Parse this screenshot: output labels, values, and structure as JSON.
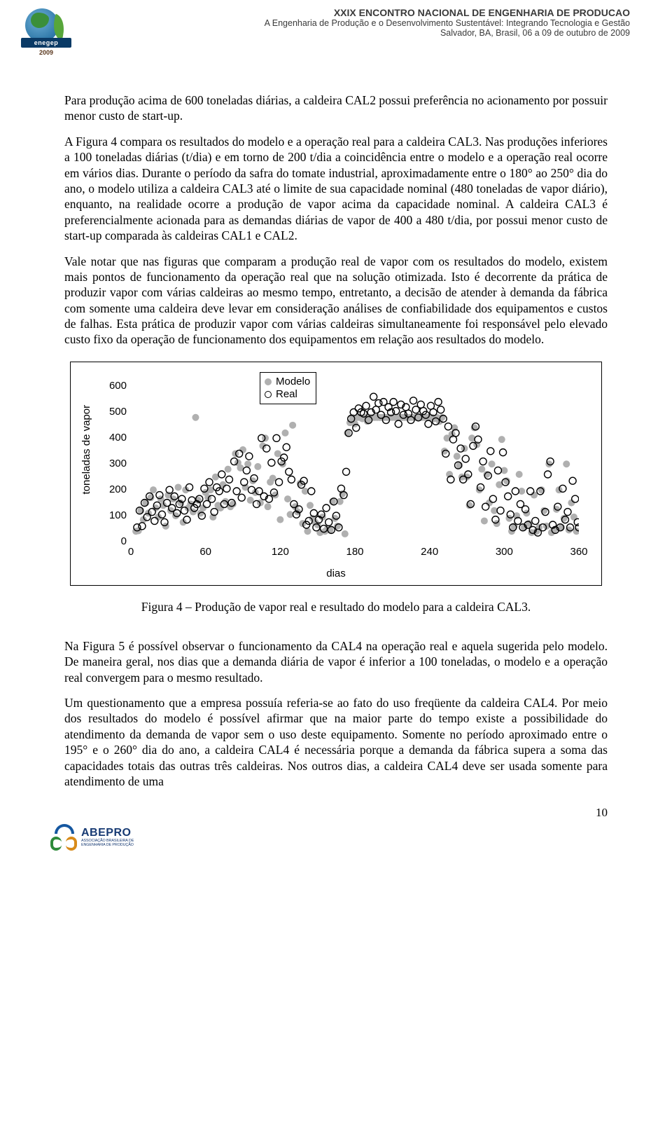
{
  "header": {
    "line1": "XXIX ENCONTRO NACIONAL DE ENGENHARIA DE PRODUCAO",
    "line2": "A Engenharia de Produção e o Desenvolvimento Sustentável:  Integrando Tecnologia e Gestão",
    "line3": "Salvador, BA, Brasil,  06 a 09 de outubro de 2009",
    "logo_text": "enegep",
    "logo_year": "2009"
  },
  "paragraphs": {
    "p1": "Para produção acima de 600 toneladas diárias, a caldeira CAL2 possui preferência no acionamento por possuir menor custo de start-up.",
    "p2": "A Figura 4 compara os resultados do modelo e a operação real para a caldeira CAL3. Nas produções inferiores a 100 toneladas diárias (t/dia) e em torno de 200 t/dia a coincidência entre o modelo e a operação real ocorre em vários dias. Durante o período da safra do tomate industrial, aproximadamente entre o 180° ao 250° dia do ano, o modelo utiliza a caldeira CAL3 até o limite de sua capacidade nominal (480 toneladas de vapor diário), enquanto, na realidade ocorre a produção de vapor acima da capacidade nominal. A caldeira CAL3 é preferencialmente acionada para as demandas diárias de vapor de 400 a 480 t/dia, por possui menor custo de start-up comparada às caldeiras CAL1 e CAL2.",
    "p3": "Vale notar que nas figuras que comparam a produção real de vapor com os resultados do modelo, existem mais pontos de funcionamento da operação real que na solução otimizada. Isto é decorrente da prática de produzir vapor com várias caldeiras ao mesmo tempo, entretanto, a decisão de atender à demanda da fábrica com somente uma caldeira deve levar em consideração análises de confiabilidade dos equipamentos e custos de falhas. Esta prática de produzir vapor com várias caldeiras simultaneamente foi responsável pelo elevado custo fixo da operação de funcionamento dos equipamentos em relação aos resultados do modelo.",
    "p4": "Na Figura 5 é possível observar o funcionamento da CAL4 na operação real e aquela sugerida pelo modelo. De maneira geral, nos dias que a demanda diária de vapor é inferior a 100 toneladas, o modelo e a operação real convergem para o mesmo resultado.",
    "p5": "Um questionamento que a empresa possuía referia-se ao fato do uso freqüente da caldeira CAL4. Por meio dos resultados do modelo é possível afirmar que na maior parte do tempo existe a possibilidade do atendimento da demanda de vapor sem o uso deste equipamento. Somente no período aproximado entre o 195° e o 260° dia do ano, a caldeira CAL4 é necessária porque a demanda da fábrica supera a soma das capacidades totais das outras três caldeiras. Nos outros dias, a caldeira CAL4 deve ser usada somente para atendimento de uma"
  },
  "fig_caption": "Figura 4 – Produção de vapor real e resultado do modelo para a caldeira CAL3.",
  "page_number": "10",
  "footer": {
    "name": "ABEPRO",
    "sub": "ASSOCIAÇÃO BRASILEIRA DE ENGENHARIA DE PRODUÇÃO"
  },
  "chart": {
    "type": "scatter",
    "ylabel": "toneladas de vapor",
    "xlabel": "dias",
    "xlim": [
      0,
      360
    ],
    "ylim": [
      0,
      650
    ],
    "xticks": [
      0,
      60,
      120,
      180,
      240,
      300,
      360
    ],
    "yticks": [
      0,
      100,
      200,
      300,
      400,
      500,
      600
    ],
    "legend": [
      "Modelo",
      "Real"
    ],
    "marker_radius": 5,
    "modelo_color": "#b0b0b0",
    "real_stroke": "#000000",
    "background": "#ffffff",
    "modelo": [
      [
        4,
        40
      ],
      [
        6,
        42
      ],
      [
        8,
        120
      ],
      [
        10,
        85
      ],
      [
        12,
        150
      ],
      [
        14,
        110
      ],
      [
        16,
        170
      ],
      [
        18,
        200
      ],
      [
        20,
        130
      ],
      [
        22,
        95
      ],
      [
        24,
        165
      ],
      [
        26,
        140
      ],
      [
        28,
        60
      ],
      [
        30,
        180
      ],
      [
        32,
        120
      ],
      [
        34,
        165
      ],
      [
        36,
        100
      ],
      [
        38,
        210
      ],
      [
        40,
        150
      ],
      [
        42,
        75
      ],
      [
        44,
        200
      ],
      [
        46,
        130
      ],
      [
        48,
        145
      ],
      [
        50,
        115
      ],
      [
        52,
        480
      ],
      [
        54,
        160
      ],
      [
        56,
        110
      ],
      [
        58,
        130
      ],
      [
        60,
        190
      ],
      [
        62,
        170
      ],
      [
        64,
        200
      ],
      [
        66,
        95
      ],
      [
        68,
        250
      ],
      [
        70,
        140
      ],
      [
        72,
        130
      ],
      [
        74,
        220
      ],
      [
        76,
        155
      ],
      [
        78,
        280
      ],
      [
        80,
        135
      ],
      [
        82,
        145
      ],
      [
        84,
        340
      ],
      [
        86,
        305
      ],
      [
        88,
        285
      ],
      [
        90,
        355
      ],
      [
        92,
        210
      ],
      [
        94,
        300
      ],
      [
        96,
        160
      ],
      [
        98,
        235
      ],
      [
        100,
        190
      ],
      [
        102,
        290
      ],
      [
        104,
        150
      ],
      [
        106,
        370
      ],
      [
        108,
        400
      ],
      [
        110,
        135
      ],
      [
        112,
        230
      ],
      [
        114,
        245
      ],
      [
        116,
        180
      ],
      [
        118,
        340
      ],
      [
        120,
        85
      ],
      [
        122,
        300
      ],
      [
        124,
        420
      ],
      [
        126,
        165
      ],
      [
        128,
        105
      ],
      [
        130,
        450
      ],
      [
        132,
        135
      ],
      [
        134,
        115
      ],
      [
        136,
        225
      ],
      [
        138,
        70
      ],
      [
        140,
        195
      ],
      [
        142,
        40
      ],
      [
        144,
        140
      ],
      [
        146,
        90
      ],
      [
        148,
        75
      ],
      [
        150,
        65
      ],
      [
        152,
        35
      ],
      [
        154,
        95
      ],
      [
        156,
        40
      ],
      [
        158,
        50
      ],
      [
        160,
        45
      ],
      [
        162,
        155
      ],
      [
        164,
        90
      ],
      [
        166,
        60
      ],
      [
        168,
        155
      ],
      [
        170,
        185
      ],
      [
        172,
        30
      ],
      [
        174,
        420
      ],
      [
        176,
        460
      ],
      [
        178,
        480
      ],
      [
        180,
        455
      ],
      [
        182,
        480
      ],
      [
        184,
        480
      ],
      [
        186,
        475
      ],
      [
        188,
        480
      ],
      [
        190,
        465
      ],
      [
        192,
        480
      ],
      [
        194,
        480
      ],
      [
        196,
        480
      ],
      [
        198,
        480
      ],
      [
        200,
        480
      ],
      [
        202,
        480
      ],
      [
        204,
        480
      ],
      [
        206,
        480
      ],
      [
        208,
        480
      ],
      [
        210,
        480
      ],
      [
        212,
        480
      ],
      [
        214,
        480
      ],
      [
        216,
        480
      ],
      [
        218,
        480
      ],
      [
        220,
        480
      ],
      [
        222,
        480
      ],
      [
        224,
        480
      ],
      [
        226,
        480
      ],
      [
        228,
        480
      ],
      [
        230,
        480
      ],
      [
        232,
        480
      ],
      [
        234,
        480
      ],
      [
        236,
        480
      ],
      [
        238,
        480
      ],
      [
        240,
        480
      ],
      [
        242,
        480
      ],
      [
        244,
        475
      ],
      [
        246,
        480
      ],
      [
        248,
        465
      ],
      [
        250,
        480
      ],
      [
        252,
        350
      ],
      [
        254,
        400
      ],
      [
        256,
        260
      ],
      [
        258,
        415
      ],
      [
        260,
        440
      ],
      [
        262,
        330
      ],
      [
        264,
        295
      ],
      [
        266,
        250
      ],
      [
        268,
        360
      ],
      [
        270,
        250
      ],
      [
        272,
        140
      ],
      [
        274,
        400
      ],
      [
        276,
        440
      ],
      [
        278,
        375
      ],
      [
        280,
        200
      ],
      [
        282,
        280
      ],
      [
        284,
        80
      ],
      [
        286,
        260
      ],
      [
        288,
        150
      ],
      [
        290,
        300
      ],
      [
        292,
        120
      ],
      [
        294,
        70
      ],
      [
        296,
        220
      ],
      [
        298,
        395
      ],
      [
        300,
        275
      ],
      [
        302,
        235
      ],
      [
        304,
        90
      ],
      [
        306,
        40
      ],
      [
        308,
        60
      ],
      [
        310,
        100
      ],
      [
        312,
        260
      ],
      [
        314,
        195
      ],
      [
        316,
        55
      ],
      [
        318,
        110
      ],
      [
        320,
        70
      ],
      [
        322,
        35
      ],
      [
        324,
        180
      ],
      [
        326,
        40
      ],
      [
        328,
        55
      ],
      [
        330,
        200
      ],
      [
        332,
        120
      ],
      [
        334,
        60
      ],
      [
        336,
        300
      ],
      [
        338,
        35
      ],
      [
        340,
        45
      ],
      [
        342,
        125
      ],
      [
        344,
        200
      ],
      [
        346,
        55
      ],
      [
        348,
        90
      ],
      [
        350,
        300
      ],
      [
        352,
        45
      ],
      [
        354,
        150
      ],
      [
        356,
        95
      ],
      [
        358,
        40
      ]
    ],
    "real": [
      [
        5,
        55
      ],
      [
        7,
        120
      ],
      [
        9,
        60
      ],
      [
        11,
        150
      ],
      [
        13,
        95
      ],
      [
        15,
        175
      ],
      [
        17,
        115
      ],
      [
        19,
        80
      ],
      [
        21,
        140
      ],
      [
        23,
        180
      ],
      [
        25,
        105
      ],
      [
        27,
        75
      ],
      [
        29,
        150
      ],
      [
        31,
        200
      ],
      [
        33,
        130
      ],
      [
        35,
        175
      ],
      [
        37,
        110
      ],
      [
        39,
        145
      ],
      [
        41,
        165
      ],
      [
        43,
        120
      ],
      [
        45,
        85
      ],
      [
        47,
        210
      ],
      [
        49,
        160
      ],
      [
        51,
        130
      ],
      [
        53,
        145
      ],
      [
        55,
        165
      ],
      [
        57,
        100
      ],
      [
        59,
        205
      ],
      [
        61,
        145
      ],
      [
        63,
        230
      ],
      [
        65,
        165
      ],
      [
        67,
        115
      ],
      [
        69,
        210
      ],
      [
        71,
        195
      ],
      [
        73,
        260
      ],
      [
        75,
        145
      ],
      [
        77,
        205
      ],
      [
        79,
        240
      ],
      [
        81,
        150
      ],
      [
        83,
        310
      ],
      [
        85,
        195
      ],
      [
        87,
        340
      ],
      [
        89,
        170
      ],
      [
        91,
        230
      ],
      [
        93,
        275
      ],
      [
        95,
        330
      ],
      [
        97,
        200
      ],
      [
        99,
        245
      ],
      [
        101,
        145
      ],
      [
        103,
        195
      ],
      [
        105,
        400
      ],
      [
        107,
        175
      ],
      [
        109,
        360
      ],
      [
        111,
        165
      ],
      [
        113,
        305
      ],
      [
        115,
        190
      ],
      [
        117,
        400
      ],
      [
        119,
        230
      ],
      [
        121,
        310
      ],
      [
        123,
        325
      ],
      [
        125,
        365
      ],
      [
        127,
        270
      ],
      [
        129,
        240
      ],
      [
        131,
        145
      ],
      [
        133,
        105
      ],
      [
        135,
        125
      ],
      [
        137,
        220
      ],
      [
        139,
        235
      ],
      [
        141,
        65
      ],
      [
        143,
        80
      ],
      [
        145,
        195
      ],
      [
        147,
        110
      ],
      [
        149,
        55
      ],
      [
        151,
        85
      ],
      [
        153,
        105
      ],
      [
        155,
        50
      ],
      [
        157,
        130
      ],
      [
        159,
        75
      ],
      [
        161,
        45
      ],
      [
        163,
        155
      ],
      [
        165,
        100
      ],
      [
        167,
        55
      ],
      [
        169,
        205
      ],
      [
        171,
        180
      ],
      [
        173,
        270
      ],
      [
        175,
        420
      ],
      [
        177,
        475
      ],
      [
        179,
        500
      ],
      [
        181,
        440
      ],
      [
        183,
        515
      ],
      [
        185,
        500
      ],
      [
        187,
        495
      ],
      [
        189,
        525
      ],
      [
        191,
        470
      ],
      [
        193,
        500
      ],
      [
        195,
        560
      ],
      [
        197,
        510
      ],
      [
        199,
        535
      ],
      [
        201,
        490
      ],
      [
        203,
        540
      ],
      [
        205,
        470
      ],
      [
        207,
        520
      ],
      [
        209,
        500
      ],
      [
        211,
        540
      ],
      [
        213,
        505
      ],
      [
        215,
        455
      ],
      [
        217,
        530
      ],
      [
        219,
        490
      ],
      [
        221,
        520
      ],
      [
        223,
        495
      ],
      [
        225,
        470
      ],
      [
        227,
        545
      ],
      [
        229,
        510
      ],
      [
        231,
        480
      ],
      [
        233,
        530
      ],
      [
        235,
        505
      ],
      [
        237,
        490
      ],
      [
        239,
        455
      ],
      [
        241,
        525
      ],
      [
        243,
        500
      ],
      [
        245,
        465
      ],
      [
        247,
        540
      ],
      [
        249,
        510
      ],
      [
        251,
        475
      ],
      [
        253,
        340
      ],
      [
        255,
        445
      ],
      [
        257,
        240
      ],
      [
        259,
        395
      ],
      [
        261,
        420
      ],
      [
        263,
        295
      ],
      [
        265,
        360
      ],
      [
        267,
        240
      ],
      [
        269,
        320
      ],
      [
        271,
        260
      ],
      [
        273,
        145
      ],
      [
        275,
        370
      ],
      [
        277,
        445
      ],
      [
        279,
        395
      ],
      [
        281,
        210
      ],
      [
        283,
        310
      ],
      [
        285,
        135
      ],
      [
        287,
        255
      ],
      [
        289,
        350
      ],
      [
        291,
        165
      ],
      [
        293,
        85
      ],
      [
        295,
        275
      ],
      [
        297,
        120
      ],
      [
        299,
        345
      ],
      [
        301,
        230
      ],
      [
        303,
        175
      ],
      [
        305,
        105
      ],
      [
        307,
        55
      ],
      [
        309,
        195
      ],
      [
        311,
        80
      ],
      [
        313,
        145
      ],
      [
        315,
        55
      ],
      [
        317,
        125
      ],
      [
        319,
        65
      ],
      [
        321,
        195
      ],
      [
        323,
        45
      ],
      [
        325,
        80
      ],
      [
        327,
        35
      ],
      [
        329,
        195
      ],
      [
        331,
        55
      ],
      [
        333,
        115
      ],
      [
        335,
        260
      ],
      [
        337,
        310
      ],
      [
        339,
        65
      ],
      [
        341,
        45
      ],
      [
        343,
        135
      ],
      [
        345,
        55
      ],
      [
        347,
        205
      ],
      [
        349,
        85
      ],
      [
        351,
        115
      ],
      [
        353,
        55
      ],
      [
        355,
        235
      ],
      [
        357,
        165
      ],
      [
        359,
        75
      ],
      [
        360,
        55
      ]
    ]
  }
}
